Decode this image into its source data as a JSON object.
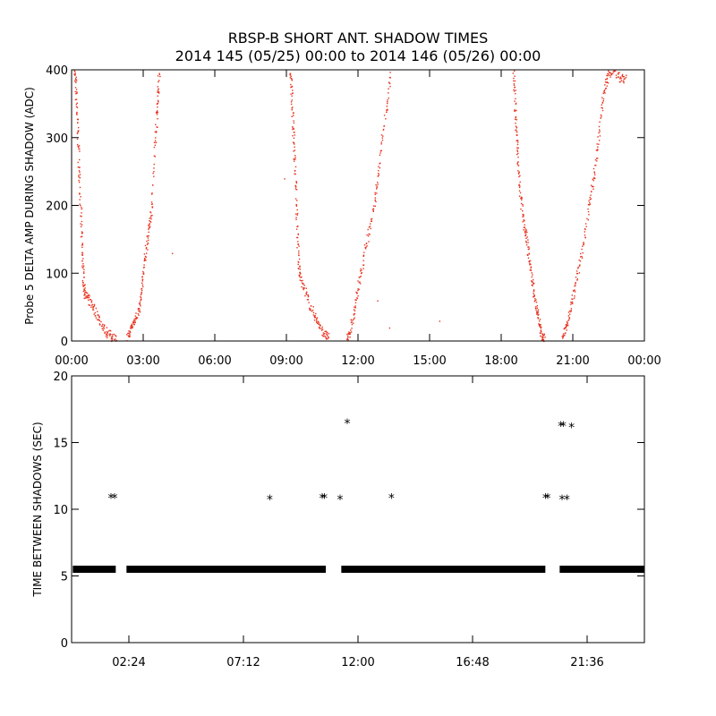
{
  "figure": {
    "title_line1": "RBSP-B SHORT ANT. SHADOW TIMES",
    "title_line2": "2014 145 (05/25) 00:00 to 2014 146 (05/26) 00:00"
  },
  "chart_data": [
    {
      "type": "scatter",
      "ylabel": "Probe 5 DELTA AMP DURING SHADOW (ADC)",
      "xlabel": "",
      "x_unit": "hours",
      "xlim": [
        0,
        24
      ],
      "ylim": [
        0,
        400
      ],
      "xticks": [
        {
          "value": 0,
          "label": "00:00"
        },
        {
          "value": 3,
          "label": "03:00"
        },
        {
          "value": 6,
          "label": "06:00"
        },
        {
          "value": 9,
          "label": "09:00"
        },
        {
          "value": 12,
          "label": "12:00"
        },
        {
          "value": 15,
          "label": "15:00"
        },
        {
          "value": 18,
          "label": "18:00"
        },
        {
          "value": 21,
          "label": "21:00"
        },
        {
          "value": 24,
          "label": "00:00"
        }
      ],
      "yticks": [
        0,
        100,
        200,
        300,
        400
      ],
      "color": "#e8321e",
      "marker": "dot",
      "segments": [
        {
          "points": [
            [
              0.1,
              400
            ],
            [
              0.15,
              380
            ],
            [
              0.2,
              340
            ],
            [
              0.25,
              300
            ],
            [
              0.3,
              250
            ],
            [
              0.35,
              200
            ],
            [
              0.4,
              150
            ],
            [
              0.45,
              110
            ],
            [
              0.5,
              80
            ],
            [
              0.55,
              70
            ],
            [
              0.7,
              60
            ],
            [
              0.9,
              50
            ],
            [
              1.1,
              35
            ],
            [
              1.3,
              20
            ],
            [
              1.5,
              12
            ],
            [
              1.7,
              6
            ],
            [
              1.85,
              4
            ]
          ]
        },
        {
          "points": [
            [
              2.3,
              4
            ],
            [
              2.45,
              18
            ],
            [
              2.6,
              30
            ],
            [
              2.75,
              40
            ],
            [
              2.85,
              60
            ],
            [
              2.95,
              90
            ],
            [
              3.05,
              120
            ],
            [
              3.15,
              150
            ],
            [
              3.25,
              175
            ],
            [
              3.35,
              200
            ],
            [
              3.45,
              280
            ],
            [
              3.55,
              330
            ],
            [
              3.6,
              360
            ],
            [
              3.65,
              400
            ]
          ]
        },
        {
          "points": [
            [
              9.15,
              400
            ],
            [
              9.2,
              370
            ],
            [
              9.25,
              330
            ],
            [
              9.3,
              290
            ],
            [
              9.35,
              250
            ],
            [
              9.4,
              200
            ],
            [
              9.45,
              150
            ],
            [
              9.5,
              110
            ],
            [
              9.6,
              90
            ],
            [
              9.8,
              70
            ],
            [
              10.0,
              50
            ],
            [
              10.2,
              35
            ],
            [
              10.4,
              20
            ],
            [
              10.6,
              10
            ],
            [
              10.75,
              4
            ]
          ]
        },
        {
          "points": [
            [
              11.5,
              4
            ],
            [
              11.65,
              15
            ],
            [
              11.8,
              40
            ],
            [
              11.95,
              70
            ],
            [
              12.1,
              100
            ],
            [
              12.3,
              140
            ],
            [
              12.5,
              170
            ],
            [
              12.7,
              210
            ],
            [
              12.85,
              250
            ],
            [
              13.0,
              300
            ],
            [
              13.2,
              350
            ],
            [
              13.35,
              400
            ]
          ]
        },
        {
          "points": [
            [
              18.5,
              400
            ],
            [
              18.55,
              360
            ],
            [
              18.6,
              320
            ],
            [
              18.65,
              290
            ],
            [
              18.7,
              250
            ],
            [
              18.8,
              210
            ],
            [
              18.9,
              180
            ],
            [
              19.0,
              160
            ],
            [
              19.1,
              135
            ],
            [
              19.2,
              110
            ],
            [
              19.3,
              85
            ],
            [
              19.4,
              60
            ],
            [
              19.5,
              40
            ],
            [
              19.6,
              20
            ],
            [
              19.7,
              8
            ],
            [
              19.8,
              3
            ]
          ]
        },
        {
          "points": [
            [
              20.55,
              4
            ],
            [
              20.65,
              18
            ],
            [
              20.8,
              35
            ],
            [
              20.95,
              60
            ],
            [
              21.1,
              90
            ],
            [
              21.3,
              120
            ],
            [
              21.5,
              160
            ],
            [
              21.7,
              210
            ],
            [
              21.85,
              240
            ],
            [
              22.0,
              280
            ],
            [
              22.15,
              330
            ],
            [
              22.3,
              370
            ],
            [
              22.45,
              390
            ],
            [
              22.6,
              400
            ],
            [
              22.8,
              395
            ],
            [
              23.0,
              385
            ],
            [
              23.2,
              390
            ]
          ]
        }
      ],
      "outliers": [
        [
          15.4,
          30
        ],
        [
          13.3,
          20
        ],
        [
          4.2,
          130
        ],
        [
          12.8,
          60
        ],
        [
          8.9,
          240
        ]
      ]
    },
    {
      "type": "scatter",
      "ylabel": "TIME BETWEEN SHADOWS (SEC)",
      "xlabel": "",
      "x_unit": "hours",
      "xlim": [
        0,
        24
      ],
      "ylim": [
        0,
        20
      ],
      "xticks": [
        {
          "value": 2.4,
          "label": "02:24"
        },
        {
          "value": 7.2,
          "label": "07:12"
        },
        {
          "value": 12.0,
          "label": "12:00"
        },
        {
          "value": 16.8,
          "label": "16:48"
        },
        {
          "value": 21.6,
          "label": "21:36"
        }
      ],
      "yticks": [
        0,
        5,
        10,
        15,
        20
      ],
      "color": "#000000",
      "marker": "asterisk",
      "baseline_value": 5.5,
      "baseline_ranges": [
        [
          0.05,
          1.85
        ],
        [
          2.3,
          10.65
        ],
        [
          11.3,
          19.85
        ],
        [
          20.45,
          24
        ]
      ],
      "points": [
        [
          1.65,
          10.9
        ],
        [
          1.8,
          10.9
        ],
        [
          8.3,
          10.8
        ],
        [
          10.5,
          10.9
        ],
        [
          10.6,
          10.9
        ],
        [
          11.25,
          10.8
        ],
        [
          11.55,
          16.5
        ],
        [
          13.4,
          10.9
        ],
        [
          19.85,
          10.9
        ],
        [
          19.95,
          10.9
        ],
        [
          20.5,
          16.3
        ],
        [
          20.6,
          16.3
        ],
        [
          20.55,
          10.8
        ],
        [
          20.75,
          10.8
        ],
        [
          20.95,
          16.2
        ]
      ]
    }
  ]
}
